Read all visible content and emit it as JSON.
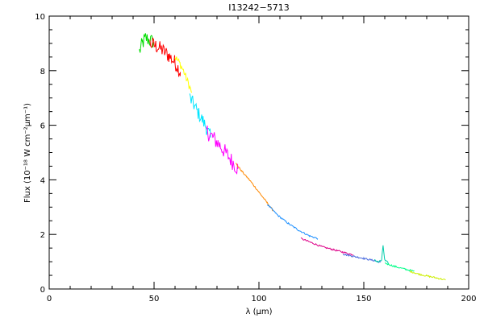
{
  "chart_data": {
    "type": "line",
    "title": "I13242−5713",
    "xlabel": "λ (μm)",
    "ylabel": "Flux (10⁻¹⁸ W cm⁻²μm⁻¹)",
    "xlim": [
      0,
      200
    ],
    "ylim": [
      0,
      10
    ],
    "x_ticks": [
      0,
      50,
      100,
      150,
      200
    ],
    "y_ticks": [
      0,
      2,
      4,
      6,
      8,
      10
    ],
    "x_tick_labels": [
      "0",
      "50",
      "100",
      "150",
      "200"
    ],
    "y_tick_labels": [
      "0",
      "2",
      "4",
      "6",
      "8",
      "10"
    ],
    "grid": false,
    "legend": "none",
    "series": [
      {
        "color": "#00dd00",
        "noise": 0.28,
        "points": [
          [
            43,
            8.7
          ],
          [
            44.5,
            9.0
          ],
          [
            46,
            9.2
          ],
          [
            48,
            9.1
          ],
          [
            50,
            9.05
          ]
        ]
      },
      {
        "color": "#ff0000",
        "noise": 0.28,
        "points": [
          [
            48,
            9.0
          ],
          [
            51,
            8.9
          ],
          [
            54,
            8.75
          ],
          [
            57,
            8.55
          ],
          [
            60,
            8.3
          ],
          [
            62.5,
            7.95
          ]
        ]
      },
      {
        "color": "#ffff00",
        "noise": 0.14,
        "points": [
          [
            60,
            8.5
          ],
          [
            62,
            8.3
          ],
          [
            64,
            8.0
          ],
          [
            66,
            7.6
          ],
          [
            68,
            7.2
          ]
        ]
      },
      {
        "color": "#00e5ff",
        "noise": 0.26,
        "points": [
          [
            67,
            7.0
          ],
          [
            69,
            6.75
          ],
          [
            71,
            6.45
          ],
          [
            73,
            6.2
          ],
          [
            75,
            5.9
          ],
          [
            77,
            5.55
          ]
        ]
      },
      {
        "color": "#ff00ff",
        "noise": 0.3,
        "points": [
          [
            75,
            5.8
          ],
          [
            78,
            5.55
          ],
          [
            81,
            5.3
          ],
          [
            84,
            5.0
          ],
          [
            87,
            4.7
          ],
          [
            90,
            4.4
          ]
        ]
      },
      {
        "color": "#ff8800",
        "noise": 0.03,
        "points": [
          [
            89,
            4.6
          ],
          [
            92,
            4.3
          ],
          [
            96,
            3.95
          ],
          [
            100,
            3.55
          ],
          [
            104,
            3.15
          ],
          [
            107,
            2.85
          ]
        ]
      },
      {
        "color": "#1e90ff",
        "noise": 0.03,
        "points": [
          [
            104,
            3.1
          ],
          [
            109,
            2.7
          ],
          [
            114,
            2.4
          ],
          [
            119,
            2.15
          ],
          [
            124,
            1.95
          ],
          [
            128,
            1.85
          ]
        ]
      },
      {
        "color": "#dd0088",
        "noise": 0.03,
        "points": [
          [
            120,
            1.85
          ],
          [
            125,
            1.7
          ],
          [
            130,
            1.55
          ],
          [
            135,
            1.45
          ],
          [
            140,
            1.35
          ],
          [
            145,
            1.25
          ]
        ]
      },
      {
        "color": "#4466dd",
        "noise": 0.03,
        "points": [
          [
            140,
            1.28
          ],
          [
            145,
            1.2
          ],
          [
            150,
            1.12
          ],
          [
            155,
            1.04
          ],
          [
            158,
            0.98
          ]
        ]
      },
      {
        "color": "#00ccaa",
        "noise": 0.04,
        "points": [
          [
            155,
            1.05
          ],
          [
            157,
            1.0
          ],
          [
            158.5,
            1.05
          ],
          [
            159.2,
            1.6
          ],
          [
            160,
            1.05
          ],
          [
            162,
            0.92
          ]
        ]
      },
      {
        "color": "#00ff88",
        "noise": 0.03,
        "points": [
          [
            160,
            0.95
          ],
          [
            165,
            0.82
          ],
          [
            170,
            0.72
          ],
          [
            174,
            0.65
          ]
        ]
      },
      {
        "color": "#ccee00",
        "noise": 0.03,
        "points": [
          [
            172,
            0.65
          ],
          [
            176,
            0.55
          ],
          [
            180,
            0.48
          ],
          [
            185,
            0.4
          ],
          [
            189,
            0.33
          ]
        ]
      }
    ]
  }
}
